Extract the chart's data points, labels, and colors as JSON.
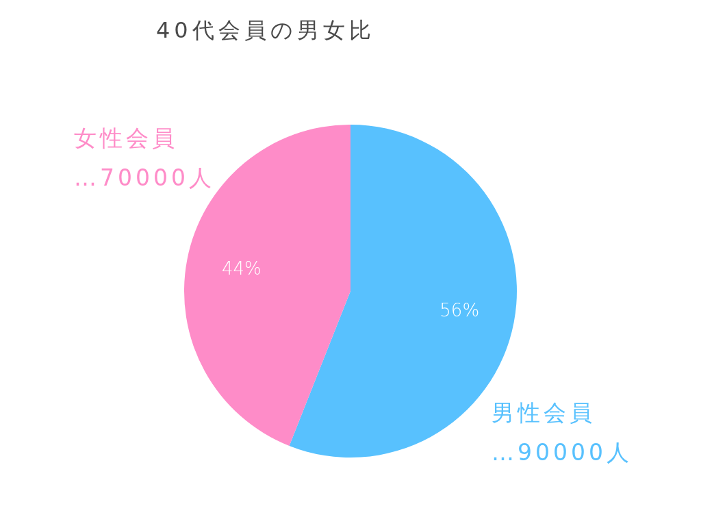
{
  "chart_data": {
    "type": "pie",
    "title": "40代会員の男女比",
    "categories": [
      "男性会員",
      "女性会員"
    ],
    "values": [
      56,
      44
    ],
    "colors": [
      "#58c1fe",
      "#fe8cc8"
    ],
    "value_labels": [
      "56%",
      "44%"
    ],
    "annotations": [
      "…90000人",
      "…70000人"
    ]
  }
}
